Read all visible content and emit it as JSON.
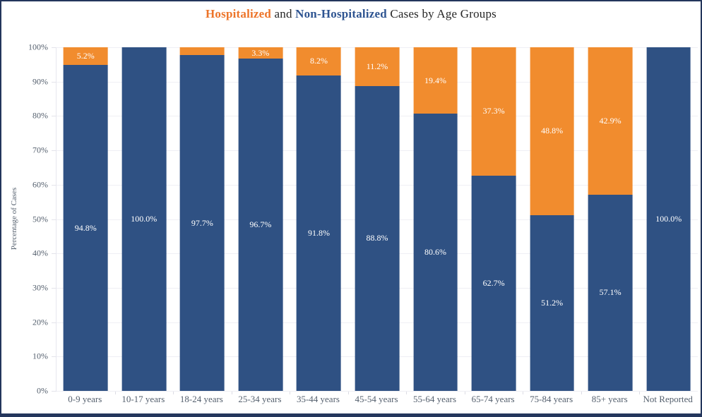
{
  "title": {
    "hospitalized": "Hospitalized",
    "and": " and ",
    "non_hospitalized": "Non-Hospitalized",
    "rest": " Cases by Age Groups"
  },
  "colors": {
    "bar_hospitalized": "#F18C2E",
    "bar_non_hospitalized": "#2F5183",
    "title_hospitalized": "#ED7429",
    "title_non_hospitalized": "#2E5491",
    "frame_border": "#24365C",
    "gridline": "#EFEFF4",
    "axis_text": "#55606E",
    "bar_label_text": "#FFFFFF"
  },
  "y_axis": {
    "title": "Percentage of Cases",
    "tick_labels": [
      "0%",
      "10%",
      "20%",
      "30%",
      "40%",
      "50%",
      "60%",
      "70%",
      "80%",
      "90%",
      "100%"
    ]
  },
  "chart_data": {
    "type": "bar",
    "stacked": true,
    "orientation": "vertical",
    "title": "Hospitalized and Non-Hospitalized Cases by Age Groups",
    "xlabel": "",
    "ylabel": "Percentage of Cases",
    "ylim": [
      0,
      100
    ],
    "ytick_step": 10,
    "grid": true,
    "legend_position": "none",
    "categories": [
      "0-9 years",
      "10-17 years",
      "18-24 years",
      "25-34 years",
      "35-44 years",
      "45-54 years",
      "55-64 years",
      "65-74 years",
      "75-84 years",
      "85+ years",
      "Not Reported"
    ],
    "series": [
      {
        "name": "Non-Hospitalized",
        "role": "non_hospitalized",
        "color": "#2F5183",
        "values": [
          94.8,
          100.0,
          97.7,
          96.7,
          91.8,
          88.8,
          80.6,
          62.7,
          51.2,
          57.1,
          100.0
        ],
        "labels": [
          "94.8%",
          "100.0%",
          "97.7%",
          "96.7%",
          "91.8%",
          "88.8%",
          "80.6%",
          "62.7%",
          "51.2%",
          "57.1%",
          "100.0%"
        ]
      },
      {
        "name": "Hospitalized",
        "role": "hospitalized",
        "color": "#F18C2E",
        "values": [
          5.2,
          0,
          2.3,
          3.3,
          8.2,
          11.2,
          19.4,
          37.3,
          48.8,
          42.9,
          0
        ],
        "labels": [
          "5.2%",
          "",
          "",
          "3.3%",
          "8.2%",
          "11.2%",
          "19.4%",
          "37.3%",
          "48.8%",
          "42.9%",
          ""
        ]
      }
    ]
  }
}
